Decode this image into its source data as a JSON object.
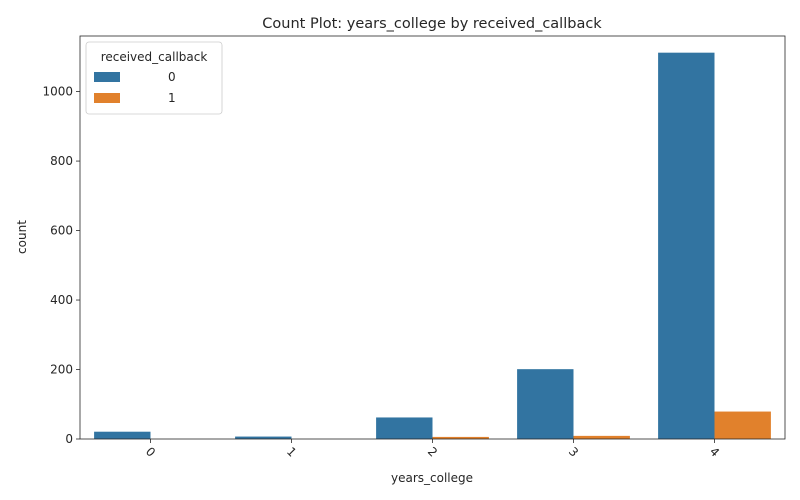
{
  "chart_data": {
    "type": "bar",
    "title": "Count Plot: years_college by received_callback",
    "xlabel": "years_college",
    "ylabel": "count",
    "categories": [
      "0",
      "1",
      "2",
      "3",
      "4"
    ],
    "series": [
      {
        "name": "0",
        "color": "#3274a1",
        "values": [
          21,
          7,
          62,
          201,
          1112
        ]
      },
      {
        "name": "1",
        "color": "#e1812c",
        "values": [
          0,
          0,
          6,
          9,
          79
        ]
      }
    ],
    "ylim": [
      0,
      1160
    ],
    "yticks": [
      0,
      200,
      400,
      600,
      800,
      1000
    ],
    "legend": {
      "title": "received_callback",
      "position": "top-left"
    },
    "grid": false
  }
}
